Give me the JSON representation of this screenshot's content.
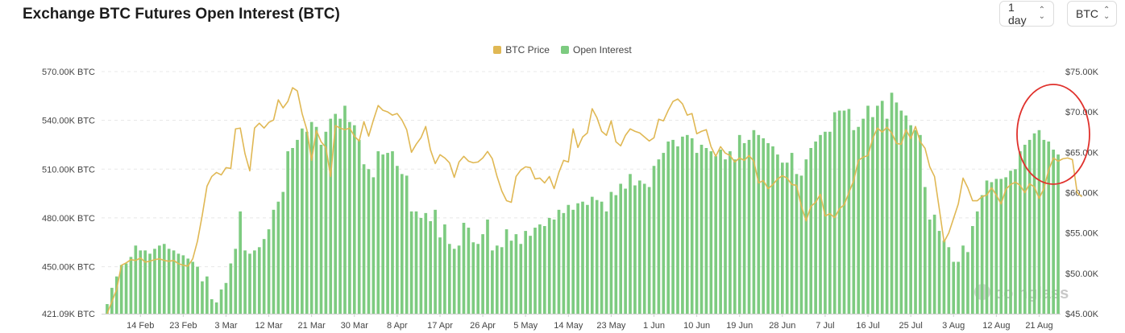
{
  "header": {
    "title": "Exchange BTC Futures Open Interest (BTC)",
    "interval_value": "1 day",
    "unit_value": "BTC"
  },
  "watermark": "coinglass",
  "colors": {
    "price": "#e0b854",
    "oi": "#7dcb80",
    "annotation": "#e0312c",
    "grid": "#e8e8e8"
  },
  "chart_data": {
    "type": "bar",
    "legend": [
      "BTC Price",
      "Open Interest"
    ],
    "legend_position": "top-center",
    "x_tick_labels": [
      "14 Feb",
      "23 Feb",
      "3 Mar",
      "12 Mar",
      "21 Mar",
      "30 Mar",
      "8 Apr",
      "17 Apr",
      "26 Apr",
      "5 May",
      "14 May",
      "23 May",
      "1 Jun",
      "10 Jun",
      "19 Jun",
      "28 Jun",
      "7 Jul",
      "16 Jul",
      "25 Jul",
      "3 Aug",
      "12 Aug",
      "21 Aug"
    ],
    "y_left_ticks": [
      "570.00K BTC",
      "540.00K BTC",
      "510.00K BTC",
      "480.00K BTC",
      "450.00K BTC",
      "421.09K BTC"
    ],
    "y_right_ticks": [
      "$75.00K",
      "$70.00K",
      "$65.00K",
      "$60.00K",
      "$55.00K",
      "$50.00K",
      "$45.00K"
    ],
    "y_left_range": [
      421090,
      570000
    ],
    "y_right_range": [
      45000,
      75000
    ],
    "grid": true,
    "annotation": "red circle around the late-August open interest rise",
    "series": [
      {
        "name": "Open Interest",
        "type": "bar",
        "values": [
          427000,
          437000,
          444000,
          451000,
          452000,
          456000,
          463000,
          460000,
          460000,
          458000,
          461000,
          463000,
          464000,
          461000,
          460000,
          458000,
          457000,
          455000,
          453000,
          450000,
          441000,
          444000,
          430000,
          428000,
          436000,
          440000,
          452000,
          461000,
          484000,
          460000,
          458000,
          460000,
          462000,
          467000,
          473000,
          485000,
          490000,
          496000,
          521000,
          523000,
          528000,
          535000,
          533000,
          539000,
          536000,
          525000,
          533000,
          541000,
          544000,
          541000,
          549000,
          539000,
          537000,
          528000,
          513000,
          510000,
          505000,
          521000,
          519000,
          520000,
          521000,
          512000,
          507000,
          506000,
          484000,
          484000,
          480000,
          483000,
          478000,
          485000,
          468000,
          476000,
          464000,
          461000,
          463000,
          477000,
          474000,
          465000,
          464000,
          470000,
          479000,
          460000,
          463000,
          462000,
          473000,
          466000,
          470000,
          464000,
          472000,
          469000,
          474000,
          476000,
          475000,
          480000,
          479000,
          485000,
          483000,
          488000,
          485000,
          489000,
          490000,
          488000,
          493000,
          491000,
          490000,
          484000,
          496000,
          494000,
          501000,
          498000,
          507000,
          500000,
          503000,
          501000,
          499000,
          512000,
          516000,
          520000,
          527000,
          528000,
          524000,
          530000,
          531000,
          529000,
          520000,
          525000,
          523000,
          521000,
          518000,
          522000,
          516000,
          521000,
          516000,
          531000,
          526000,
          528000,
          534000,
          531000,
          529000,
          526000,
          524000,
          519000,
          514000,
          514000,
          520000,
          507000,
          506000,
          516000,
          523000,
          527000,
          531000,
          533000,
          533000,
          545000,
          546000,
          546000,
          547000,
          534000,
          536000,
          541000,
          549000,
          542000,
          549000,
          552000,
          541000,
          557000,
          551000,
          546000,
          543000,
          537000,
          534000,
          531000,
          499000,
          479000,
          482000,
          472000,
          466000,
          462000,
          453000,
          453000,
          463000,
          459000,
          475000,
          484000,
          494000,
          503000,
          502000,
          504000,
          504000,
          505000,
          509000,
          510000,
          521000,
          525000,
          528000,
          532000,
          534000,
          528000,
          527000,
          522000,
          519000
        ]
      },
      {
        "name": "BTC Price",
        "type": "line",
        "values": [
          45000,
          46500,
          48000,
          51000,
          51300,
          51700,
          51600,
          51900,
          51400,
          51500,
          51700,
          51800,
          51600,
          51500,
          51600,
          51200,
          51000,
          50900,
          51800,
          54000,
          57200,
          60800,
          62000,
          62500,
          62200,
          63100,
          63000,
          67900,
          68000,
          64800,
          62700,
          68000,
          68600,
          68000,
          68700,
          69000,
          71500,
          70500,
          71300,
          73000,
          72600,
          69800,
          67800,
          64000,
          67700,
          66300,
          65600,
          62000,
          68300,
          68000,
          67800,
          68000,
          67000,
          66400,
          68800,
          67000,
          69000,
          70800,
          70200,
          70000,
          69600,
          69800,
          69000,
          67800,
          65000,
          66000,
          66800,
          68200,
          65300,
          63600,
          64700,
          64300,
          63700,
          61900,
          63800,
          64500,
          63900,
          63700,
          63800,
          64300,
          65100,
          64200,
          62000,
          60200,
          59000,
          58800,
          62000,
          62800,
          63200,
          63100,
          61700,
          61800,
          61200,
          62000,
          60500,
          62500,
          64000,
          63800,
          67900,
          65600,
          66900,
          67400,
          70400,
          69300,
          67600,
          67100,
          68900,
          66300,
          65800,
          67100,
          67900,
          67600,
          67400,
          66900,
          66400,
          66800,
          69100,
          68900,
          70200,
          71300,
          71600,
          71000,
          69600,
          69800,
          67300,
          67600,
          67800,
          65700,
          64500,
          65700,
          64900,
          64600,
          63800,
          64300,
          64000,
          64600,
          63900,
          61200,
          61500,
          60500,
          61000,
          61700,
          62100,
          61800,
          61000,
          60900,
          58300,
          56500,
          58300,
          58800,
          59800,
          57100,
          57400,
          56900,
          58000,
          58500,
          60000,
          61500,
          64000,
          64400,
          64600,
          66700,
          68000,
          67500,
          68100,
          67400,
          66100,
          66000,
          67800,
          66700,
          68200,
          66300,
          65500,
          63200,
          62000,
          58000,
          53900,
          55000,
          56800,
          58600,
          61800,
          60600,
          59000,
          59000,
          59500,
          59700,
          60600,
          59700,
          58600,
          60400,
          61000,
          61300,
          60900,
          60000,
          61100,
          60700,
          59300,
          60500,
          62800,
          64300,
          63900,
          64200,
          64300,
          64100,
          60000,
          59500
        ]
      }
    ]
  }
}
